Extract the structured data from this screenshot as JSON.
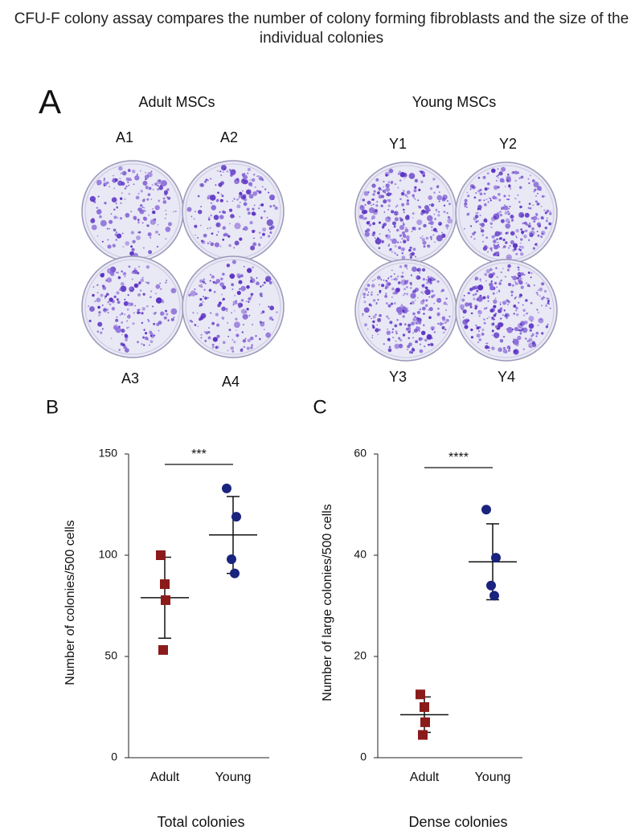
{
  "title": "CFU-F colony assay compares the number of colony forming fibroblasts and the size of the individual colonies",
  "panel_a": {
    "letter": "A",
    "groups": [
      {
        "label": "Adult MSCs",
        "plates": [
          "A1",
          "A2",
          "A3",
          "A4"
        ]
      },
      {
        "label": "Young MSCs",
        "plates": [
          "Y1",
          "Y2",
          "Y3",
          "Y4"
        ]
      }
    ]
  },
  "chart_data": [
    {
      "type": "scatter",
      "panel": "B",
      "xlabel": "Total colonies",
      "ylabel": "Number of colonies/500 cells",
      "categories": [
        "Adult",
        "Young"
      ],
      "ylim": [
        0,
        150
      ],
      "yticks": [
        0,
        50,
        100,
        150
      ],
      "series": [
        {
          "color": "#8b1a1a",
          "marker": "square",
          "values": [
            100,
            85.7,
            77.8,
            53.2
          ],
          "mean": 79,
          "error": 20
        },
        {
          "color": "#1a237e",
          "marker": "circle",
          "values": [
            133,
            119,
            98,
            91
          ],
          "mean": 110,
          "error": 19
        }
      ],
      "annotation": "***"
    },
    {
      "type": "scatter",
      "panel": "C",
      "xlabel": "Dense colonies",
      "ylabel": "Number of large colonies/500 cells",
      "categories": [
        "Adult",
        "Young"
      ],
      "ylim": [
        0,
        60
      ],
      "yticks": [
        0,
        20,
        40,
        60
      ],
      "series": [
        {
          "color": "#8b1a1a",
          "marker": "square",
          "values": [
            12.5,
            10,
            7,
            4.5
          ],
          "mean": 8.5,
          "error": 3.5
        },
        {
          "color": "#1a237e",
          "marker": "circle",
          "values": [
            49,
            39.5,
            34,
            32
          ],
          "mean": 38.7,
          "error": 7.5
        }
      ],
      "annotation": "****"
    }
  ]
}
